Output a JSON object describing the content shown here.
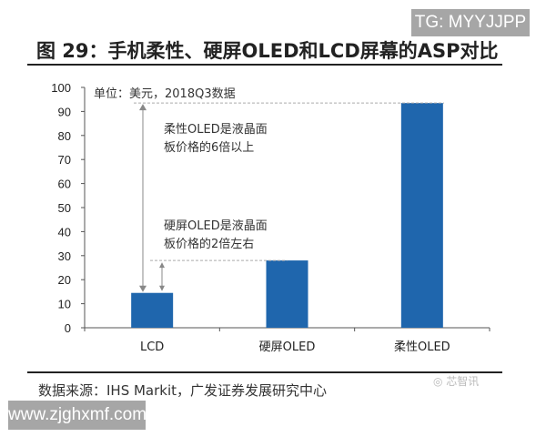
{
  "watermark_top": "TG: MYYJJPP",
  "watermark_bottom": "www.zjghxmf.com",
  "watermark_logo": "芯智讯",
  "source": "数据来源：IHS Markit，广发证券发展研究中心",
  "chart_data": {
    "type": "bar",
    "title": "图 29：手机柔性、硬屏OLED和LCD屏幕的ASP对比",
    "unit_note": "单位：美元，2018Q3数据",
    "categories": [
      "LCD",
      "硬屏OLED",
      "柔性OLED"
    ],
    "values": [
      14.5,
      28,
      93.5
    ],
    "ylim": [
      0,
      100
    ],
    "yticks": [
      0,
      10,
      20,
      30,
      40,
      50,
      60,
      70,
      80,
      90,
      100
    ],
    "bar_color": "#1f66ad",
    "grid": false,
    "annotations": [
      "柔性OLED是液晶面板价格的6倍以上",
      "硬屏OLED是液晶面板价格的2倍左右"
    ]
  }
}
